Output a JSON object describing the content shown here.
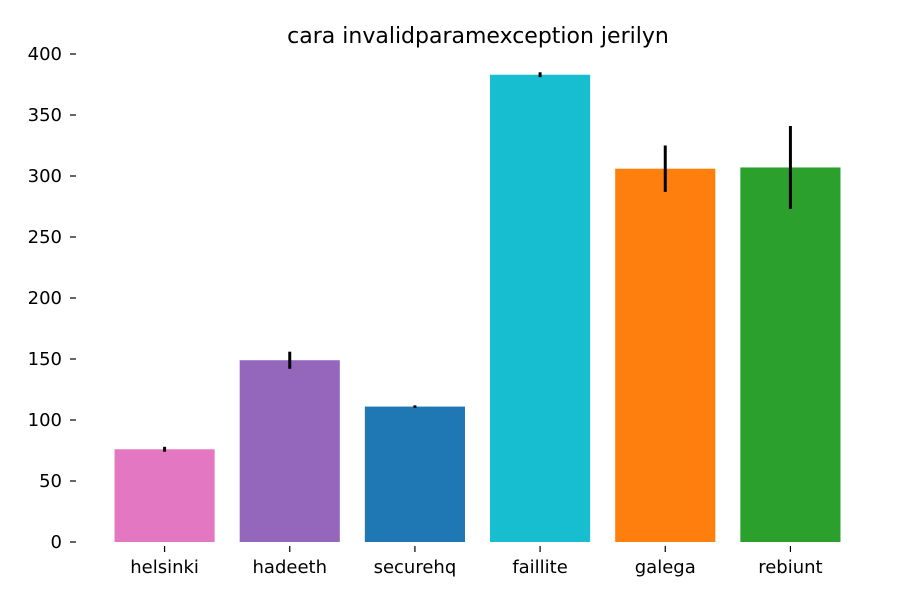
{
  "chart_data": {
    "type": "bar",
    "title": "cara invalidparamexception jerilyn",
    "xlabel": "",
    "ylabel": "",
    "categories": [
      "helsinki",
      "hadeeth",
      "securehq",
      "faillite",
      "galega",
      "rebiunt"
    ],
    "values": [
      76,
      149,
      111,
      383,
      306,
      307
    ],
    "errors": [
      2,
      7,
      1,
      2,
      19,
      34
    ],
    "colors": [
      "#e377c2",
      "#9467bd",
      "#1f77b4",
      "#17becf",
      "#ff7f0e",
      "#2ca02c"
    ],
    "error_color": "#000000",
    "ylim": [
      0,
      400
    ],
    "yticks": [
      0,
      50,
      100,
      150,
      200,
      250,
      300,
      350,
      400
    ],
    "grid": false
  }
}
